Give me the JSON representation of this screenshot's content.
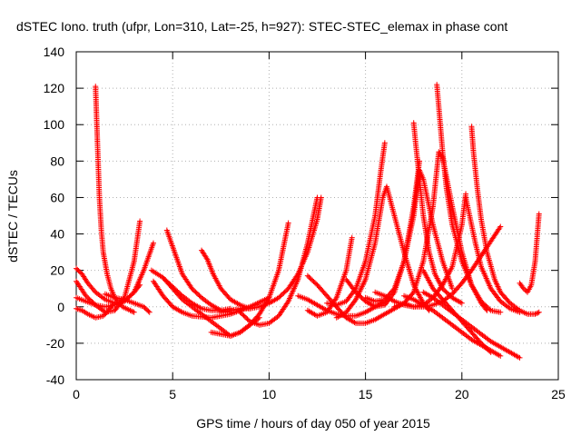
{
  "chart_data": {
    "type": "scatter",
    "title": "dSTEC Iono. truth (ufpr, Lon=310, Lat=-25, h=927): STEC-STEC_elemax in phase cont",
    "xlabel": "GPS time / hours of day 050 of year 2015",
    "ylabel": "dSTEC  / TECUs",
    "xlim": [
      0,
      25
    ],
    "ylim": [
      -40,
      140
    ],
    "xticks": [
      0,
      5,
      10,
      15,
      20,
      25
    ],
    "yticks": [
      -40,
      -20,
      0,
      20,
      40,
      60,
      80,
      100,
      120,
      140
    ],
    "xtick_labels": [
      "0",
      "5",
      "10",
      "15",
      "20",
      "25"
    ],
    "ytick_labels": [
      "-40",
      "-20",
      "0",
      "20",
      "40",
      "60",
      "80",
      "100",
      "120",
      "140"
    ],
    "grid": true,
    "legend": "none",
    "marker": "+",
    "color": "#ff0000",
    "series": [
      {
        "name": "arc1",
        "x": [
          0.0,
          0.3,
          0.6,
          1.0,
          1.4,
          1.6,
          1.8,
          2.0
        ],
        "y": [
          -1,
          -2,
          -4,
          -6,
          -5,
          -3,
          0,
          2
        ]
      },
      {
        "name": "arc2",
        "x": [
          1.0,
          1.1,
          1.2,
          1.3,
          1.4,
          1.6,
          1.8,
          2.0,
          2.4,
          2.8,
          3.0
        ],
        "y": [
          121,
          90,
          60,
          42,
          30,
          18,
          10,
          5,
          0,
          -2,
          -3
        ]
      },
      {
        "name": "arc3",
        "x": [
          0.0,
          0.3,
          0.6,
          1.0,
          1.5,
          2.0,
          2.5,
          3.0,
          3.3
        ],
        "y": [
          21,
          18,
          13,
          8,
          4,
          2,
          3,
          8,
          12
        ]
      },
      {
        "name": "arc4",
        "x": [
          0.0,
          0.5,
          1.0,
          1.5,
          2.0,
          2.5,
          3.0,
          3.3
        ],
        "y": [
          14,
          6,
          1,
          -3,
          -2,
          5,
          25,
          47
        ]
      },
      {
        "name": "arc5",
        "x": [
          0.0,
          0.5,
          1.0,
          1.5,
          2.0,
          2.5,
          3.0,
          3.5,
          4.0
        ],
        "y": [
          5,
          3,
          1,
          0,
          1,
          3,
          8,
          20,
          35
        ]
      },
      {
        "name": "arc6",
        "x": [
          1.5,
          2.0,
          2.5,
          3.0,
          3.5,
          3.8
        ],
        "y": [
          7,
          5,
          4,
          2,
          0,
          -3
        ]
      },
      {
        "name": "arc7",
        "x": [
          3.9,
          4.5,
          5.0,
          5.5,
          6.0,
          6.5,
          7.0,
          7.5,
          8.0
        ],
        "y": [
          20,
          16,
          11,
          6,
          2,
          -1,
          -2,
          -2,
          -1
        ]
      },
      {
        "name": "arc8",
        "x": [
          4.7,
          4.9,
          5.2,
          5.5,
          6.0,
          6.5,
          7.0,
          7.5,
          8.0
        ],
        "y": [
          42,
          36,
          27,
          18,
          10,
          5,
          1,
          -2,
          -3
        ]
      },
      {
        "name": "arc9",
        "x": [
          6.5,
          6.8,
          7.1,
          7.5,
          8.0,
          8.5,
          9.0
        ],
        "y": [
          31,
          26,
          18,
          10,
          4,
          1,
          -1
        ]
      },
      {
        "name": "arc10",
        "x": [
          4.0,
          4.5,
          5.0,
          5.5,
          6.0,
          7.0,
          8.0,
          9.0,
          10.0
        ],
        "y": [
          14,
          6,
          0,
          -3,
          -5,
          -6,
          -4,
          0,
          5
        ]
      },
      {
        "name": "arc11",
        "x": [
          4.5,
          5.0,
          5.5,
          6.0,
          6.5,
          7.0,
          7.5,
          8.0,
          8.5,
          9.0,
          9.5
        ],
        "y": [
          16,
          10,
          4,
          0,
          -4,
          -8,
          -12,
          -16,
          -14,
          -10,
          -6
        ]
      },
      {
        "name": "arc12",
        "x": [
          7.0,
          7.5,
          8.0,
          8.5,
          9.0,
          9.5,
          10.0,
          10.5,
          11.0
        ],
        "y": [
          -14,
          -15,
          -16,
          -14,
          -10,
          -4,
          5,
          20,
          46
        ]
      },
      {
        "name": "arc13",
        "x": [
          8.5,
          9.0,
          9.5,
          10.0,
          10.5,
          11.0,
          11.5,
          12.0,
          12.5
        ],
        "y": [
          -3,
          -8,
          -10,
          -9,
          -5,
          3,
          15,
          35,
          60
        ]
      },
      {
        "name": "arc14",
        "x": [
          7.5,
          8.0,
          8.5,
          9.0,
          9.5,
          10.0,
          10.5,
          11.0,
          11.5,
          12.0,
          12.5,
          12.7
        ],
        "y": [
          -3,
          -2,
          -1,
          -1,
          0,
          2,
          5,
          10,
          18,
          30,
          48,
          60
        ]
      },
      {
        "name": "arc15",
        "x": [
          11.5,
          12.0,
          12.5,
          13.0,
          13.5,
          14.0,
          14.5,
          15.0,
          15.5,
          16.0
        ],
        "y": [
          6,
          4,
          1,
          -2,
          -4,
          -5,
          -5,
          -3,
          0,
          3
        ]
      },
      {
        "name": "arc16",
        "x": [
          12.0,
          12.5,
          13.0,
          13.5,
          14.0,
          14.5,
          15.0,
          15.5,
          16.0,
          16.5,
          17.0
        ],
        "y": [
          17,
          12,
          6,
          0,
          -6,
          -9,
          -9,
          -7,
          -4,
          -1,
          2
        ]
      },
      {
        "name": "arc17",
        "x": [
          12.0,
          12.5,
          13.0,
          13.5,
          14.0,
          14.3
        ],
        "y": [
          -2,
          -5,
          -3,
          5,
          20,
          38
        ]
      },
      {
        "name": "arc18",
        "x": [
          13.0,
          13.5,
          14.0,
          14.5,
          15.0,
          15.5,
          15.8,
          16.0
        ],
        "y": [
          2,
          1,
          3,
          10,
          25,
          50,
          75,
          90
        ]
      },
      {
        "name": "arc19",
        "x": [
          13.5,
          14.0,
          14.5,
          15.0,
          15.5,
          15.9,
          16.1,
          16.5,
          17.0,
          17.5,
          18.0,
          18.3
        ],
        "y": [
          -6,
          -3,
          4,
          15,
          35,
          60,
          66,
          50,
          30,
          12,
          2,
          -2
        ]
      },
      {
        "name": "arc20",
        "x": [
          14.0,
          14.5,
          15.0,
          15.5,
          16.0,
          16.5,
          17.0,
          17.5,
          17.8
        ],
        "y": [
          15,
          8,
          3,
          0,
          1,
          8,
          25,
          55,
          80
        ]
      },
      {
        "name": "arc21",
        "x": [
          15.0,
          15.5,
          16.0,
          16.5,
          17.0,
          17.5,
          17.8,
          18.0,
          18.5,
          19.0,
          19.5
        ],
        "y": [
          5,
          3,
          4,
          10,
          25,
          50,
          75,
          70,
          45,
          25,
          10
        ]
      },
      {
        "name": "arc22",
        "x": [
          17.5,
          17.6,
          17.8,
          18.0,
          18.3,
          18.6,
          19.0,
          19.5,
          20.0
        ],
        "y": [
          101,
          90,
          70,
          50,
          30,
          18,
          10,
          5,
          2
        ]
      },
      {
        "name": "arc23",
        "x": [
          16.5,
          17.0,
          17.5,
          18.0,
          18.5,
          18.8,
          19.0,
          19.5,
          20.0,
          20.5,
          21.0,
          21.3
        ],
        "y": [
          0,
          2,
          8,
          25,
          55,
          85,
          82,
          55,
          30,
          12,
          2,
          -2
        ]
      },
      {
        "name": "arc24",
        "x": [
          18.7,
          18.8,
          19.0,
          19.2,
          19.5,
          20.0,
          20.5,
          21.0,
          21.5,
          22.0
        ],
        "y": [
          122,
          110,
          85,
          65,
          45,
          25,
          12,
          3,
          -2,
          -3
        ]
      },
      {
        "name": "arc25",
        "x": [
          17.0,
          17.5,
          18.0,
          18.5,
          19.0,
          19.5,
          20.0,
          20.2
        ],
        "y": [
          2,
          0,
          1,
          5,
          12,
          22,
          45,
          62
        ]
      },
      {
        "name": "arc26",
        "x": [
          20.2,
          20.4,
          20.7,
          21.0,
          21.5,
          22.0,
          22.5,
          23.0
        ],
        "y": [
          60,
          50,
          35,
          22,
          10,
          3,
          -1,
          -3
        ]
      },
      {
        "name": "arc27",
        "x": [
          20.5,
          20.6,
          20.8,
          21.0,
          21.3,
          21.7,
          22.0,
          22.5,
          23.0,
          23.4,
          23.8,
          24.0
        ],
        "y": [
          99,
          85,
          65,
          48,
          30,
          15,
          8,
          2,
          -2,
          -4,
          -4,
          -3
        ]
      },
      {
        "name": "arc28",
        "x": [
          15.5,
          16.0,
          16.5,
          17.0,
          17.5,
          18.0,
          18.5,
          19.0,
          19.5,
          20.0,
          20.5,
          21.0,
          21.5,
          22.0
        ],
        "y": [
          8,
          6,
          3,
          1,
          0,
          0,
          1,
          3,
          7,
          13,
          20,
          28,
          36,
          44
        ]
      },
      {
        "name": "arc29",
        "x": [
          17.0,
          17.5,
          18.0,
          18.5,
          19.0,
          19.5,
          20.0,
          20.5,
          21.0,
          21.5,
          22.0
        ],
        "y": [
          6,
          4,
          1,
          -2,
          -6,
          -10,
          -14,
          -18,
          -21,
          -24,
          -27
        ]
      },
      {
        "name": "arc30",
        "x": [
          18.0,
          18.5,
          19.0,
          19.5,
          20.0,
          20.5,
          21.0,
          21.5,
          22.0,
          22.5,
          23.0
        ],
        "y": [
          8,
          5,
          1,
          -3,
          -7,
          -11,
          -15,
          -19,
          -22,
          -25,
          -28
        ]
      },
      {
        "name": "arc31",
        "x": [
          23.0,
          23.2,
          23.4,
          23.6,
          23.8,
          24.0
        ],
        "y": [
          13,
          10,
          8,
          12,
          25,
          51
        ]
      },
      {
        "name": "arc32",
        "x": [
          18.0,
          18.5,
          19.0,
          19.5,
          20.0,
          20.5,
          21.0,
          21.5
        ],
        "y": [
          20,
          10,
          4,
          -2,
          -8,
          -14,
          -20,
          -25
        ]
      }
    ]
  }
}
